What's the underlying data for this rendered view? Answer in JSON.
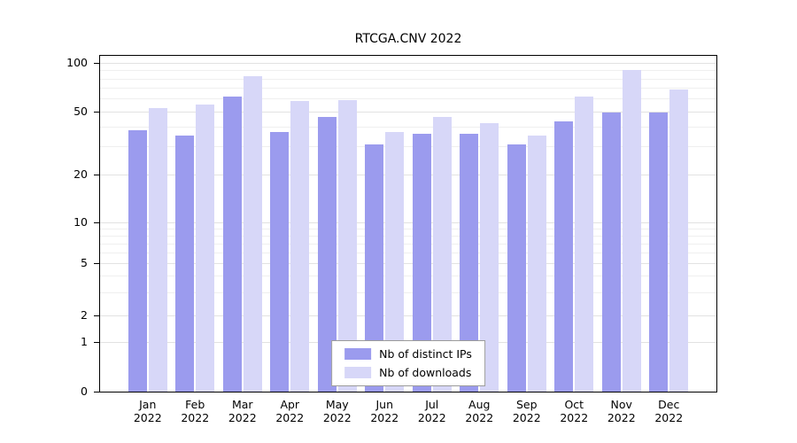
{
  "title": "RTCGA.CNV 2022",
  "colors": {
    "distinct_ips": "#9b9bee",
    "downloads": "#d7d7f8",
    "grid_major": "#e2e2e2",
    "grid_minor": "#efefef",
    "axis": "#000000",
    "legend_border": "#9a9a9a"
  },
  "chart_data": {
    "type": "bar",
    "title": "RTCGA.CNV 2022",
    "categories": [
      "Jan",
      "Feb",
      "Mar",
      "Apr",
      "May",
      "Jun",
      "Jul",
      "Aug",
      "Sep",
      "Oct",
      "Nov",
      "Dec"
    ],
    "year": "2022",
    "series": [
      {
        "name": "Nb of distinct IPs",
        "color": "#9b9bee",
        "values": [
          38,
          35,
          62,
          37,
          46,
          31,
          36,
          36,
          31,
          43,
          49,
          49
        ]
      },
      {
        "name": "Nb of downloads",
        "color": "#d7d7f8",
        "values": [
          52,
          55,
          83,
          58,
          59,
          37,
          46,
          42,
          35,
          62,
          90,
          68
        ]
      }
    ],
    "yticks": [
      0,
      1,
      2,
      5,
      10,
      20,
      50,
      100
    ],
    "minor_gridlines": [
      3,
      4,
      6,
      7,
      8,
      9,
      30,
      40,
      60,
      70,
      80,
      90
    ],
    "yscale": "log",
    "ylim": [
      0,
      110
    ],
    "xlabel": "",
    "ylabel": "",
    "grid": true,
    "legend_position": "bottom-center"
  }
}
